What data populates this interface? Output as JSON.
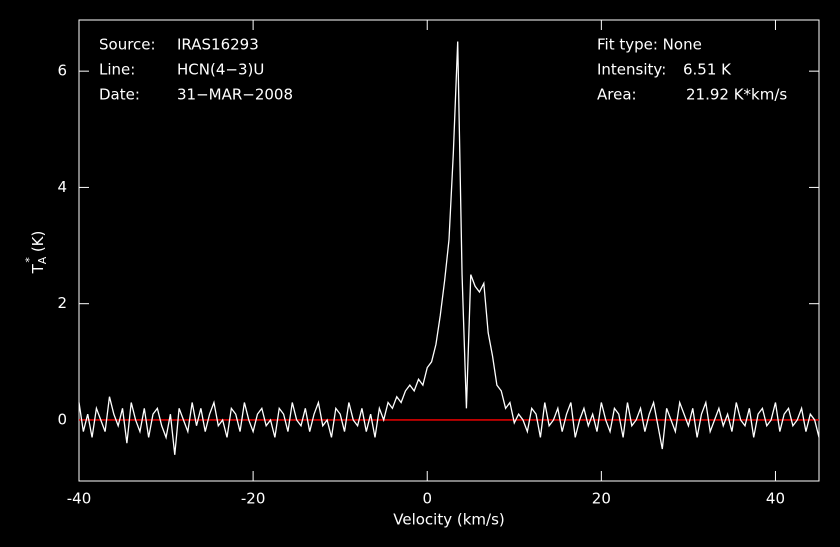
{
  "chart_data": {
    "type": "line",
    "info": {
      "source_label": "Source:",
      "source": "IRAS16293",
      "line_label": "Line:",
      "line": "HCN(4−3)U",
      "date_label": "Date:",
      "date": "31−MAR−2008",
      "fit": "Fit type: None",
      "intensity_label": "Intensity:",
      "intensity": "6.51 K",
      "area_label": "Area:",
      "area": "21.92 K*km/s"
    },
    "x_label": "Velocity (km/s)",
    "y_label": {
      "main": "T",
      "sub": "A",
      "sup": "*",
      "unit": "(K)"
    },
    "xlim": [
      -40,
      45
    ],
    "ylim": [
      -1.05,
      6.88
    ],
    "xticks": [
      -40,
      -20,
      0,
      20,
      40
    ],
    "yticks": [
      0,
      2,
      4,
      6
    ],
    "baseline": {
      "value": 0,
      "color": "#ff0000"
    },
    "series": [
      {
        "color": "#ffffff",
        "x": [
          -40,
          -39.5,
          -39,
          -38.5,
          -38,
          -37.5,
          -37,
          -36.5,
          -36,
          -35.5,
          -35,
          -34.5,
          -34,
          -33.5,
          -33,
          -32.5,
          -32,
          -31.5,
          -31,
          -30.5,
          -30,
          -29.5,
          -29,
          -28.5,
          -28,
          -27.5,
          -27,
          -26.5,
          -26,
          -25.5,
          -25,
          -24.5,
          -24,
          -23.5,
          -23,
          -22.5,
          -22,
          -21.5,
          -21,
          -20.5,
          -20,
          -19.5,
          -19,
          -18.5,
          -18,
          -17.5,
          -17,
          -16.5,
          -16,
          -15.5,
          -15,
          -14.5,
          -14,
          -13.5,
          -13,
          -12.5,
          -12,
          -11.5,
          -11,
          -10.5,
          -10,
          -9.5,
          -9,
          -8.5,
          -8,
          -7.5,
          -7,
          -6.5,
          -6,
          -5.5,
          -5,
          -4.5,
          -4,
          -3.5,
          -3,
          -2.5,
          -2,
          -1.5,
          -1,
          -0.5,
          0,
          0.5,
          1,
          1.5,
          2,
          2.5,
          3,
          3.5,
          4,
          4.5,
          5,
          5.5,
          6,
          6.5,
          7,
          7.5,
          8,
          8.5,
          9,
          9.5,
          10,
          10.5,
          11,
          11.5,
          12,
          12.5,
          13,
          13.5,
          14,
          14.5,
          15,
          15.5,
          16,
          16.5,
          17,
          17.5,
          18,
          18.5,
          19,
          19.5,
          20,
          20.5,
          21,
          21.5,
          22,
          22.5,
          23,
          23.5,
          24,
          24.5,
          25,
          25.5,
          26,
          26.5,
          27,
          27.5,
          28,
          28.5,
          29,
          29.5,
          30,
          30.5,
          31,
          31.5,
          32,
          32.5,
          33,
          33.5,
          34,
          34.5,
          35,
          35.5,
          36,
          36.5,
          37,
          37.5,
          38,
          38.5,
          39,
          39.5,
          40,
          40.5,
          41,
          41.5,
          42,
          42.5,
          43,
          43.5,
          44,
          44.5,
          45
        ],
        "values": [
          0.3,
          -0.2,
          0.1,
          -0.3,
          0.2,
          0.0,
          -0.2,
          0.4,
          0.1,
          -0.1,
          0.2,
          -0.4,
          0.3,
          0.0,
          -0.2,
          0.2,
          -0.3,
          0.1,
          0.2,
          -0.1,
          -0.3,
          0.1,
          -0.6,
          0.2,
          0.0,
          -0.2,
          0.3,
          -0.1,
          0.2,
          -0.2,
          0.1,
          0.3,
          -0.1,
          0.0,
          -0.3,
          0.2,
          0.1,
          -0.2,
          0.3,
          0.0,
          -0.2,
          0.1,
          0.2,
          -0.1,
          0.0,
          -0.3,
          0.2,
          0.1,
          -0.2,
          0.3,
          0.0,
          -0.1,
          0.2,
          -0.2,
          0.1,
          0.3,
          -0.1,
          0.0,
          -0.3,
          0.2,
          0.1,
          -0.2,
          0.3,
          0.0,
          -0.1,
          0.2,
          -0.2,
          0.1,
          -0.3,
          0.2,
          0.0,
          0.3,
          0.2,
          0.4,
          0.3,
          0.5,
          0.6,
          0.5,
          0.7,
          0.6,
          0.9,
          1.0,
          1.3,
          1.8,
          2.4,
          3.1,
          4.6,
          6.51,
          2.5,
          0.2,
          2.5,
          2.3,
          2.2,
          2.35,
          1.5,
          1.1,
          0.6,
          0.5,
          0.2,
          0.3,
          -0.05,
          0.1,
          0.0,
          -0.2,
          0.2,
          0.1,
          -0.3,
          0.3,
          -0.1,
          0.0,
          0.2,
          -0.2,
          0.1,
          0.3,
          -0.3,
          0.0,
          0.2,
          -0.1,
          0.1,
          -0.2,
          0.3,
          0.0,
          -0.2,
          0.2,
          0.1,
          -0.3,
          0.3,
          -0.1,
          0.0,
          0.2,
          -0.2,
          0.1,
          0.3,
          -0.1,
          -0.5,
          0.2,
          0.0,
          -0.2,
          0.3,
          0.1,
          -0.1,
          0.2,
          -0.3,
          0.1,
          0.3,
          -0.2,
          0.0,
          0.2,
          -0.1,
          0.1,
          -0.2,
          0.3,
          0.0,
          -0.1,
          0.2,
          -0.3,
          0.1,
          0.2,
          -0.1,
          0.0,
          0.3,
          -0.2,
          0.1,
          0.2,
          -0.1,
          0.0,
          0.2,
          -0.2,
          0.1,
          0.0,
          -0.3
        ]
      }
    ]
  }
}
